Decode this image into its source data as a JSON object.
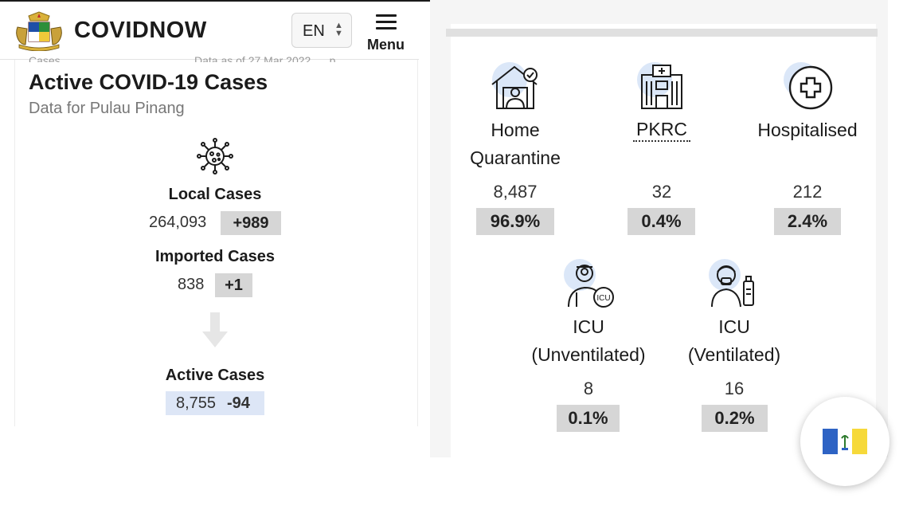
{
  "header": {
    "brand": "COVIDNOW",
    "language": "EN",
    "menu_label": "Menu"
  },
  "left": {
    "cut_text_left": "Cases",
    "cut_text_right": "Data as of 27 Mar 2022, ... p...",
    "title": "Active COVID-19 Cases",
    "subtitle": "Data for Pulau Pinang",
    "local": {
      "label": "Local Cases",
      "value": "264,093",
      "delta": "+989"
    },
    "imported": {
      "label": "Imported Cases",
      "value": "838",
      "delta": "+1"
    },
    "active": {
      "label": "Active Cases",
      "value": "8,755",
      "delta": "-94"
    }
  },
  "right": {
    "home": {
      "label_line1": "Home",
      "label_line2": "Quarantine",
      "value": "8,487",
      "percent": "96.9%"
    },
    "pkrc": {
      "label": "PKRC",
      "value": "32",
      "percent": "0.4%"
    },
    "hospitalised": {
      "label": "Hospitalised",
      "value": "212",
      "percent": "2.4%"
    },
    "icu_unvent": {
      "label_line1": "ICU",
      "label_line2": "(Unventilated)",
      "value": "8",
      "percent": "0.1%"
    },
    "icu_vent": {
      "label_line1": "ICU",
      "label_line2": "(Ventilated)",
      "value": "16",
      "percent": "0.2%"
    }
  },
  "colors": {
    "delta_bg": "#d6d6d6",
    "active_bg": "#dde6f6",
    "icon_accent": "#dbe7f8",
    "flag_blue": "#2e63c4",
    "flag_white": "#ffffff",
    "flag_yellow": "#f6d93a"
  },
  "icons": [
    "coat-of-arms-logo",
    "virus-icon",
    "arrow-down-icon",
    "house-person-icon",
    "hospital-building-icon",
    "medical-cross-icon",
    "icu-doctor-icon",
    "ventilator-patient-icon",
    "penang-flag"
  ]
}
